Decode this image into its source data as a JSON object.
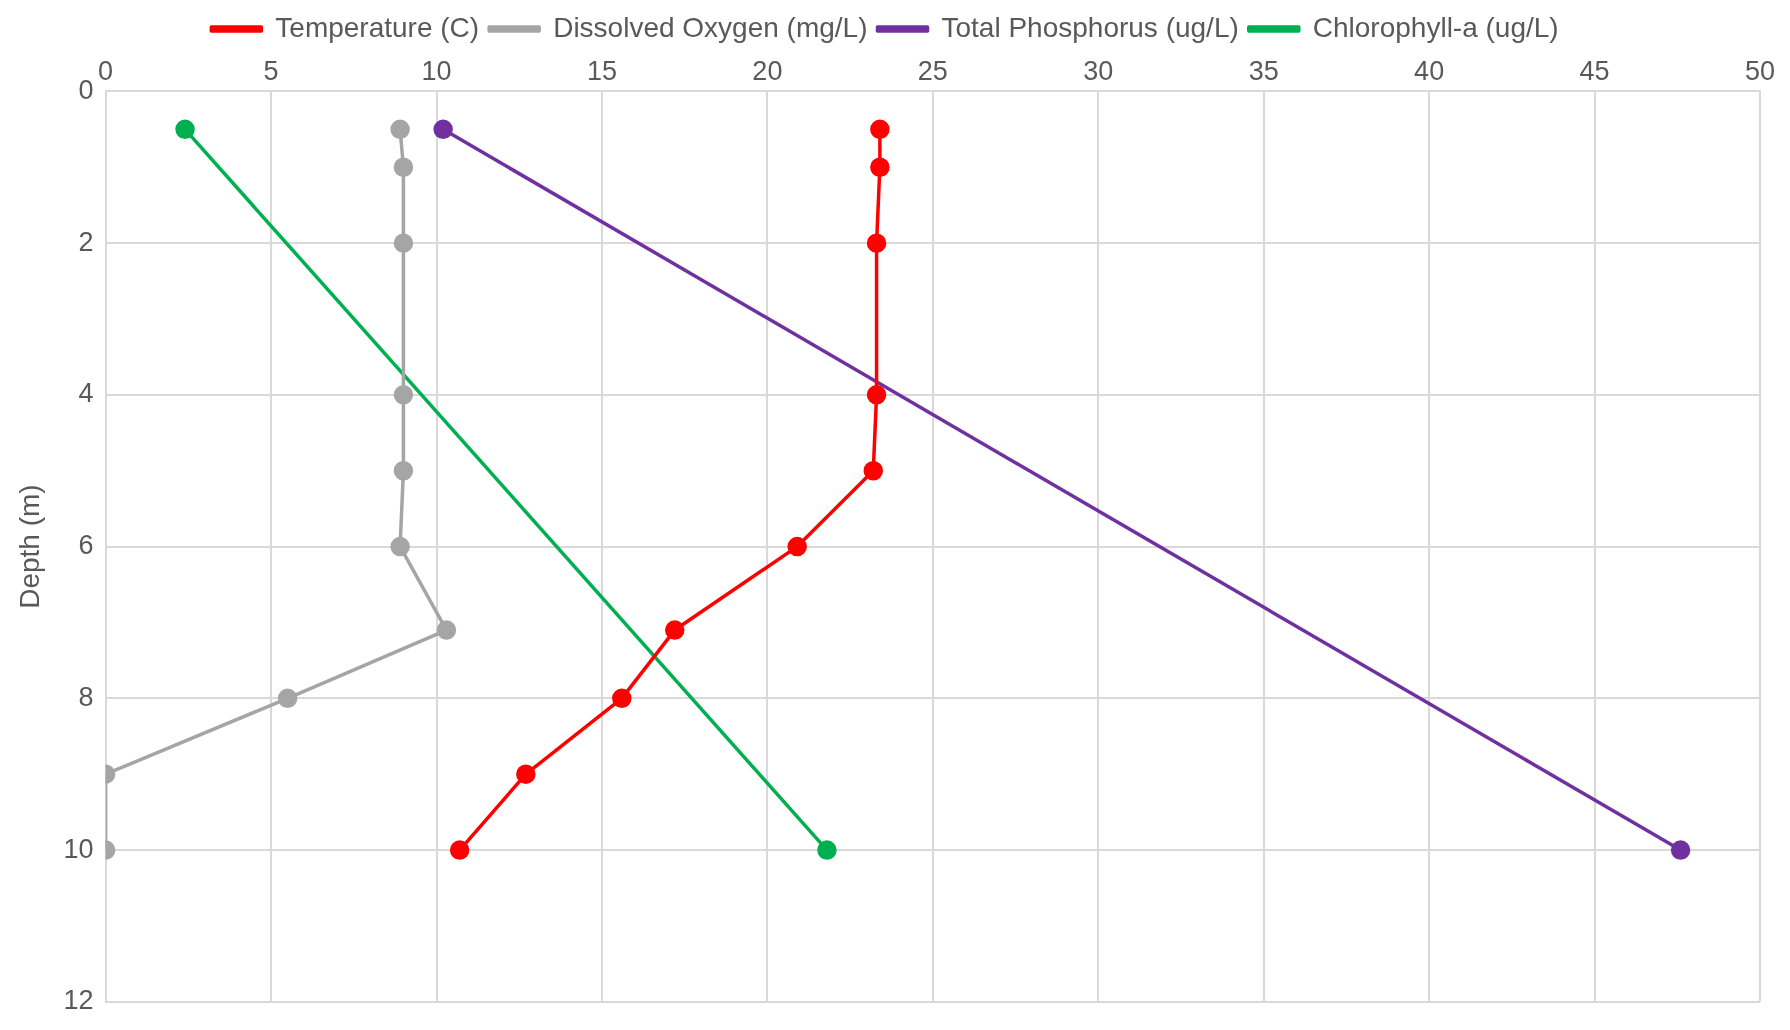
{
  "chart_data": {
    "type": "line",
    "ylabel": "Depth (m)",
    "xlim": [
      0,
      50
    ],
    "xticks": [
      0,
      5,
      10,
      15,
      20,
      25,
      30,
      35,
      40,
      45,
      50
    ],
    "ylim": [
      12,
      0
    ],
    "yticks": [
      0,
      2,
      4,
      6,
      8,
      10,
      12
    ],
    "grid": true,
    "legend": "top",
    "marker": "circle",
    "line_style": "solid",
    "series": [
      {
        "name": "Temperature (C)",
        "color": "#ff0000",
        "x": [
          23.4,
          23.4,
          23.3,
          23.3,
          23.2,
          20.9,
          17.2,
          15.6,
          12.7,
          10.7
        ],
        "values": [
          0.5,
          1,
          2,
          4,
          5,
          6,
          7.1,
          8,
          9,
          10
        ]
      },
      {
        "name": "Dissolved Oxygen (mg/L)",
        "color": "#a5a5a5",
        "x": [
          8.9,
          9,
          9,
          9,
          9,
          8.9,
          10.3,
          5.5,
          0,
          0
        ],
        "values": [
          0.5,
          1,
          2,
          4,
          5,
          6,
          7.1,
          8,
          9,
          10
        ]
      },
      {
        "name": "Total Phosphorus (ug/L)",
        "color": "#7030a0",
        "x": [
          10.2,
          47.6
        ],
        "values": [
          0.5,
          10
        ]
      },
      {
        "name": "Chlorophyll-a (ug/L)",
        "color": "#00b050",
        "x": [
          2.4,
          21.8
        ],
        "values": [
          0.5,
          10
        ]
      }
    ]
  }
}
